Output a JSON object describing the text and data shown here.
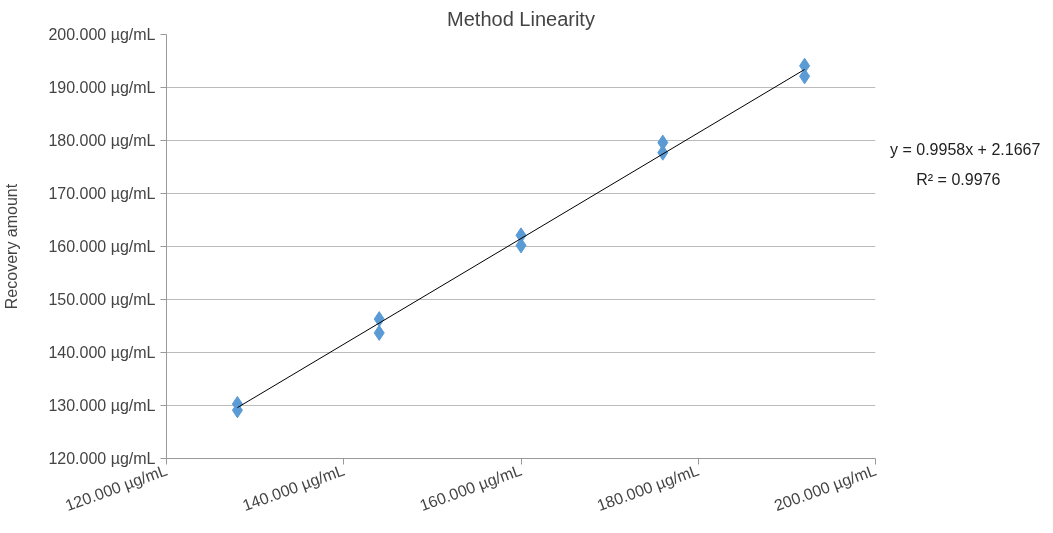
{
  "chart_data": {
    "type": "scatter",
    "title": "Method Linearity",
    "ylabel": "Recovery amount",
    "x": [
      128,
      128,
      144,
      144,
      160,
      160,
      176,
      176,
      192,
      192
    ],
    "series": [
      {
        "color": "#5b9bd5",
        "marker": "diamond",
        "values": [
          130.3,
          129.1,
          146.3,
          143.7,
          162.1,
          160.2,
          179.6,
          177.7,
          194.1,
          192.1
        ]
      },
      {
        "type": "line",
        "color": "#000000",
        "x": [
          128,
          192
        ],
        "values": [
          129.6,
          193.4
        ]
      }
    ],
    "xlim": [
      120,
      200
    ],
    "ylim": [
      120,
      200
    ],
    "xticks": [
      {
        "value": 120,
        "label": "120.000 µg/mL"
      },
      {
        "value": 140,
        "label": "140.000 µg/mL"
      },
      {
        "value": 160,
        "label": "160.000 µg/mL"
      },
      {
        "value": 180,
        "label": "180.000 µg/mL"
      },
      {
        "value": 200,
        "label": "200.000 µg/mL"
      }
    ],
    "yticks": [
      {
        "value": 120,
        "label": "120.000 µg/mL"
      },
      {
        "value": 130,
        "label": "130.000 µg/mL"
      },
      {
        "value": 140,
        "label": "140.000 µg/mL"
      },
      {
        "value": 150,
        "label": "150.000 µg/mL"
      },
      {
        "value": 160,
        "label": "160.000 µg/mL"
      },
      {
        "value": 170,
        "label": "170.000 µg/mL"
      },
      {
        "value": 180,
        "label": "180.000 µg/mL"
      },
      {
        "value": 190,
        "label": "190.000 µg/mL"
      },
      {
        "value": 200,
        "label": "200.000 µg/mL"
      }
    ],
    "annotations": [
      "y = 0.9958x + 2.1667",
      "R² = 0.9976"
    ],
    "grid": "y"
  }
}
